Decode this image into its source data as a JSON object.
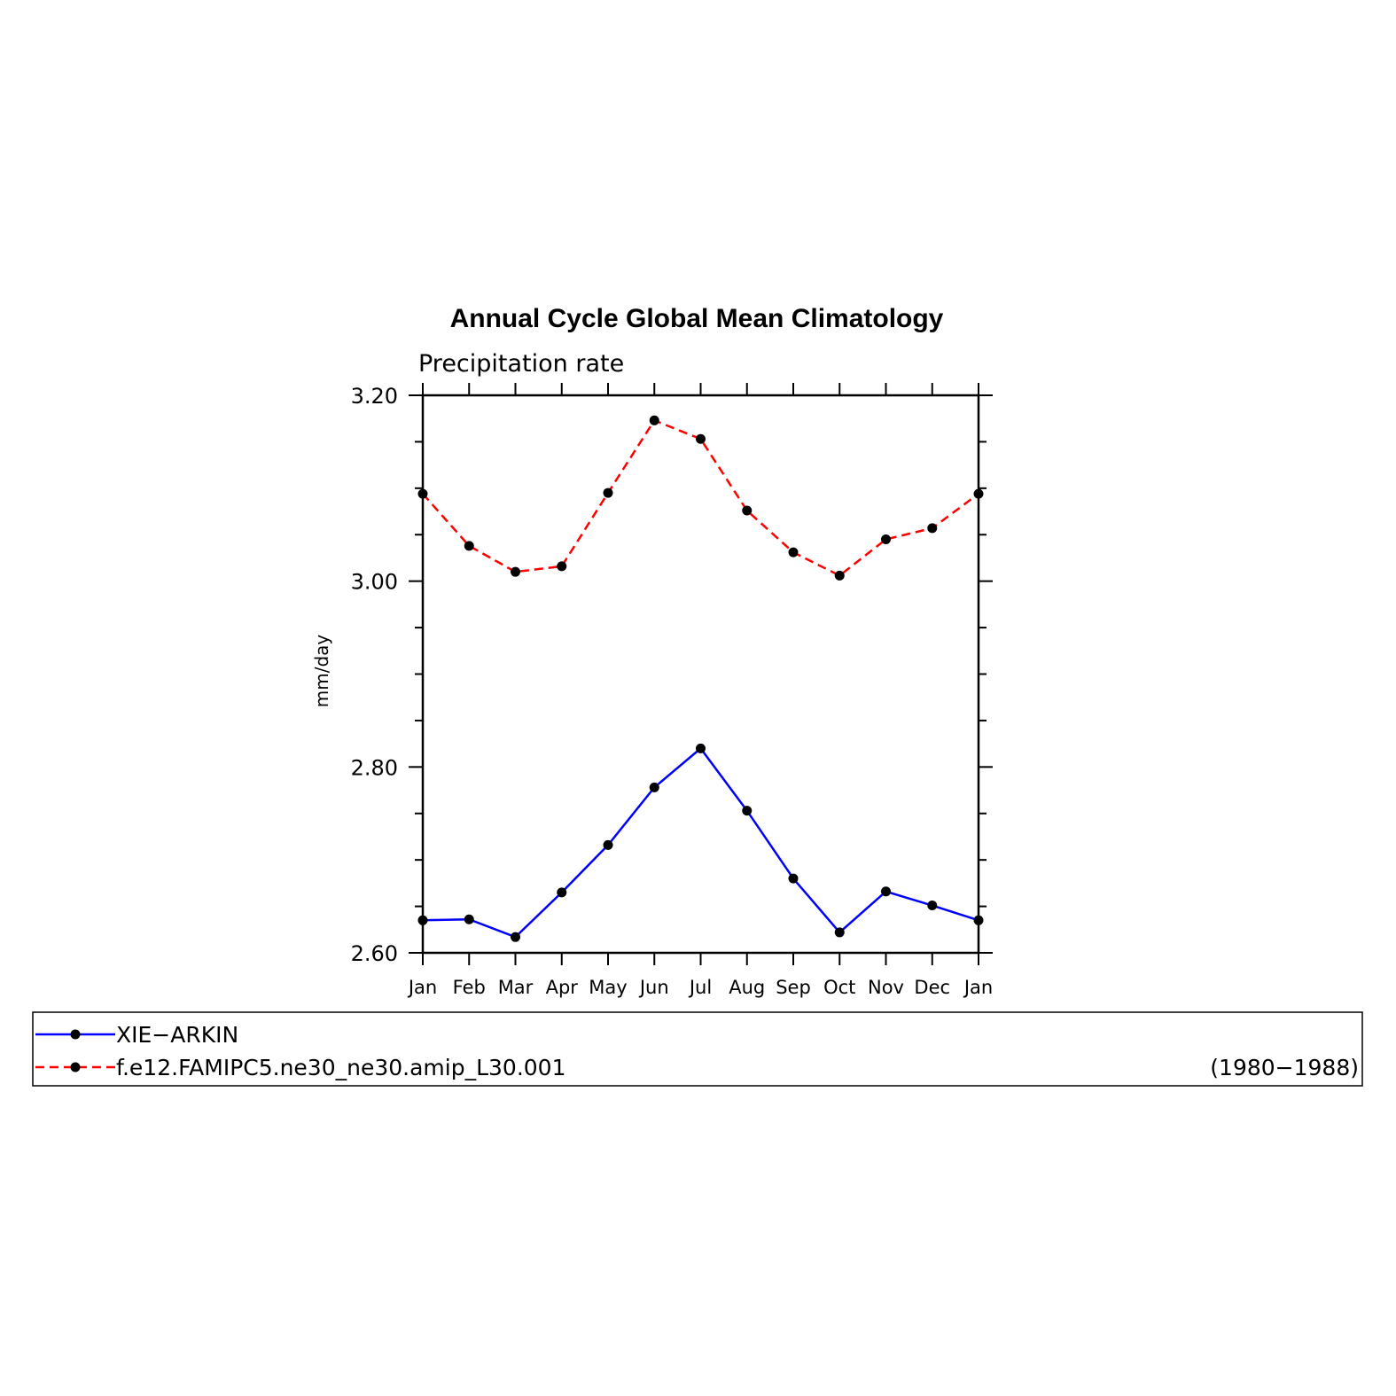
{
  "chart_data": {
    "type": "line",
    "title": "Annual Cycle Global Mean Climatology",
    "subtitle": "Precipitation rate",
    "ylabel": "mm/day",
    "xlabel": "",
    "ylim": [
      2.6,
      3.2
    ],
    "yticks": [
      "2.60",
      "2.80",
      "3.00",
      "3.20"
    ],
    "categories": [
      "Jan",
      "Feb",
      "Mar",
      "Apr",
      "May",
      "Jun",
      "Jul",
      "Aug",
      "Sep",
      "Oct",
      "Nov",
      "Dec",
      "Jan"
    ],
    "series": [
      {
        "name": "XIE−ARKIN",
        "color": "#0000ff",
        "dash": "solid",
        "values": [
          2.635,
          2.636,
          2.617,
          2.665,
          2.716,
          2.778,
          2.82,
          2.753,
          2.68,
          2.622,
          2.666,
          2.651,
          2.635
        ]
      },
      {
        "name": "f.e12.FAMIPC5.ne30_ne30.amip_L30.001",
        "color": "#ff0000",
        "dash": "dashed",
        "values": [
          3.094,
          3.038,
          3.01,
          3.016,
          3.095,
          3.173,
          3.153,
          3.076,
          3.031,
          3.006,
          3.045,
          3.057,
          3.094
        ]
      }
    ],
    "legend": {
      "placement": "below",
      "note": "(1980−1988)"
    },
    "grid": false,
    "marker": "filled-circle",
    "marker_color": "#000000"
  }
}
